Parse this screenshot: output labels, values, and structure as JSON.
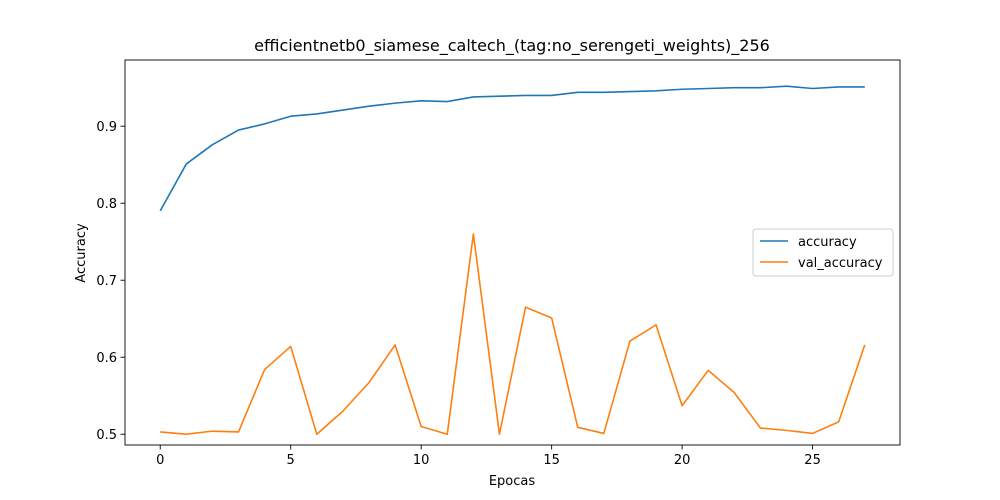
{
  "chart_data": {
    "type": "line",
    "title": "efficientnetb0_siamese_caltech_(tag:no_serengeti_weights)_256",
    "xlabel": "Epocas",
    "ylabel": "Accuracy",
    "x": [
      0,
      1,
      2,
      3,
      4,
      5,
      6,
      7,
      8,
      9,
      10,
      11,
      12,
      13,
      14,
      15,
      16,
      17,
      18,
      19,
      20,
      21,
      22,
      23,
      24,
      25,
      26,
      27
    ],
    "xlim": [
      -1.35,
      28.35
    ],
    "ylim": [
      0.486,
      0.986
    ],
    "xticks": [
      0,
      5,
      10,
      15,
      20,
      25
    ],
    "yticks": [
      0.5,
      0.6,
      0.7,
      0.8,
      0.9
    ],
    "legend_position": "center-right",
    "series": [
      {
        "name": "accuracy",
        "color": "#1f77b4",
        "values": [
          0.79,
          0.851,
          0.876,
          0.895,
          0.903,
          0.913,
          0.916,
          0.921,
          0.926,
          0.93,
          0.933,
          0.932,
          0.938,
          0.939,
          0.94,
          0.94,
          0.944,
          0.944,
          0.945,
          0.946,
          0.948,
          0.949,
          0.95,
          0.95,
          0.952,
          0.949,
          0.951,
          0.951
        ]
      },
      {
        "name": "val_accuracy",
        "color": "#ff7f0e",
        "values": [
          0.503,
          0.5,
          0.504,
          0.503,
          0.584,
          0.614,
          0.5,
          0.53,
          0.567,
          0.616,
          0.51,
          0.5,
          0.76,
          0.5,
          0.665,
          0.651,
          0.509,
          0.501,
          0.621,
          0.642,
          0.537,
          0.583,
          0.554,
          0.508,
          0.505,
          0.501,
          0.516,
          0.616
        ]
      }
    ]
  }
}
